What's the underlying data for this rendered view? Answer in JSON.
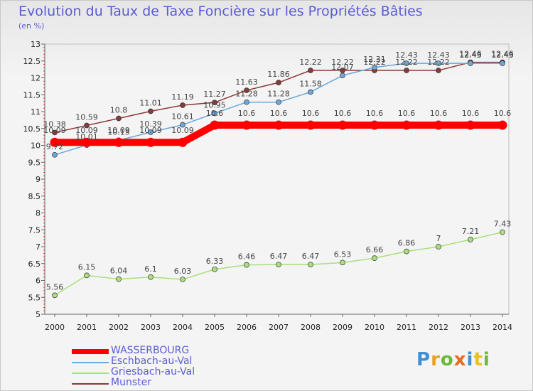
{
  "title": "Evolution du Taux de Taxe Foncière sur les Propriétés Bâties",
  "subtitle": "(en %)",
  "logo": "Proxiti",
  "chart_data": {
    "type": "line",
    "title": "Evolution du Taux de Taxe Foncière sur les Propriétés Bâties",
    "ylabel": "(en %)",
    "xlabel": "",
    "ylim": [
      5,
      13
    ],
    "yticks": [
      "5",
      "5.5",
      "6",
      "6.5",
      "7",
      "7.5",
      "8",
      "8.5",
      "9",
      "9.5",
      "10",
      "10.5",
      "11",
      "11.5",
      "12",
      "12.5",
      "13"
    ],
    "categories": [
      "2000",
      "2001",
      "2002",
      "2003",
      "2004",
      "2005",
      "2006",
      "2007",
      "2008",
      "2009",
      "2010",
      "2011",
      "2012",
      "2013",
      "2014"
    ],
    "grid": false,
    "legend": "bottom-left",
    "series": [
      {
        "name": "WASSERBOURG",
        "color": "#ff0000",
        "values": [
          10.09,
          10.09,
          10.09,
          10.09,
          10.09,
          10.6,
          10.6,
          10.6,
          10.6,
          10.6,
          10.6,
          10.6,
          10.6,
          10.6,
          10.6
        ],
        "labels": [
          "10.09",
          "10.09",
          "10.09",
          "10.09",
          "10.09",
          "10.6",
          "10.6",
          "10.6",
          "10.6",
          "10.6",
          "10.6",
          "10.6",
          "10.6",
          "10.6",
          "10.6"
        ]
      },
      {
        "name": "Eschbach-au-Val",
        "color": "#6aa7db",
        "values": [
          9.72,
          10.01,
          10.15,
          10.39,
          10.61,
          10.95,
          11.28,
          11.28,
          11.58,
          12.07,
          12.31,
          12.43,
          12.43,
          12.43,
          12.43
        ],
        "labels": [
          "9.72",
          "10.01",
          "10.15",
          "10.39",
          "10.61",
          "10.95",
          "11.28",
          "11.28",
          "11.58",
          "12.07",
          "12.31",
          "12.43",
          "12.43",
          "12.43",
          "12.43"
        ]
      },
      {
        "name": "Griesbach-au-Val",
        "color": "#a8e07a",
        "values": [
          5.56,
          6.15,
          6.04,
          6.1,
          6.03,
          6.33,
          6.46,
          6.47,
          6.47,
          6.53,
          6.66,
          6.86,
          7,
          7.21,
          7.43
        ],
        "labels": [
          "5.56",
          "6.15",
          "6.04",
          "6.1",
          "6.03",
          "6.33",
          "6.46",
          "6.47",
          "6.47",
          "6.53",
          "6.66",
          "6.86",
          "7",
          "7.21",
          "7.43"
        ]
      },
      {
        "name": "Munster",
        "color": "#8b3a3a",
        "values": [
          10.38,
          10.59,
          10.8,
          11.01,
          11.19,
          11.27,
          11.63,
          11.86,
          12.22,
          12.22,
          12.22,
          12.22,
          12.22,
          12.46,
          12.46
        ],
        "labels": [
          "10.38",
          "10.59",
          "10.8",
          "11.01",
          "11.19",
          "11.27",
          "11.63",
          "11.86",
          "12.22",
          "12.22",
          "12.22",
          "12.22",
          "12.22",
          "12.46",
          "12.46"
        ]
      }
    ]
  }
}
